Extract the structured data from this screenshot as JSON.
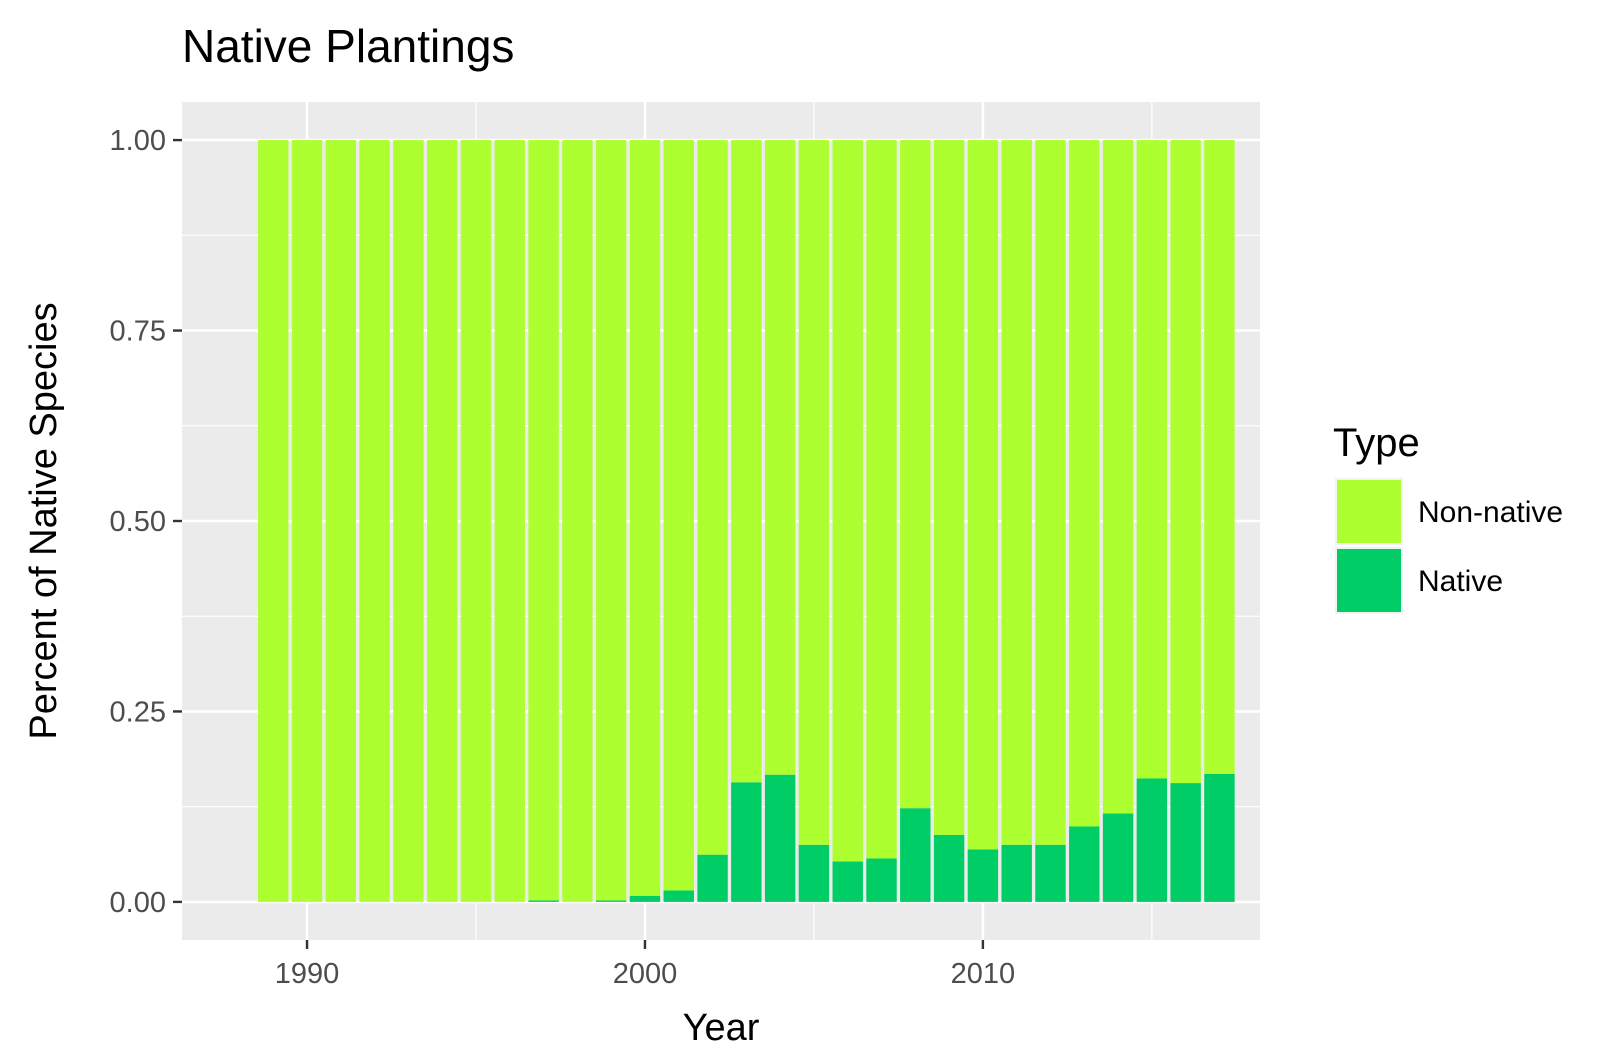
{
  "chart_data": {
    "type": "bar",
    "stacked": true,
    "title": "Native Plantings",
    "xlabel": "Year",
    "ylabel": "Percent of Native Species",
    "x": [
      1989,
      1990,
      1991,
      1992,
      1993,
      1994,
      1995,
      1996,
      1997,
      1998,
      1999,
      2000,
      2001,
      2002,
      2003,
      2004,
      2005,
      2006,
      2007,
      2008,
      2009,
      2010,
      2011,
      2012,
      2013,
      2014,
      2015,
      2016,
      2017
    ],
    "series": [
      {
        "name": "Non-native",
        "color": "#adff2f",
        "values": [
          1,
          1,
          1,
          1,
          1,
          1,
          1,
          1,
          0.998,
          1,
          0.998,
          0.992,
          0.985,
          0.938,
          0.843,
          0.833,
          0.925,
          0.947,
          0.943,
          0.877,
          0.912,
          0.931,
          0.925,
          0.925,
          0.901,
          0.884,
          0.838,
          0.844,
          0.832
        ]
      },
      {
        "name": "Native",
        "color": "#00cd66",
        "values": [
          0,
          0,
          0,
          0,
          0,
          0,
          0,
          0,
          0.002,
          0,
          0.002,
          0.008,
          0.015,
          0.062,
          0.157,
          0.167,
          0.075,
          0.053,
          0.057,
          0.123,
          0.088,
          0.069,
          0.075,
          0.075,
          0.099,
          0.116,
          0.162,
          0.156,
          0.168
        ]
      }
    ],
    "ylim": [
      -0.05,
      1.05
    ],
    "xlim": [
      1986.3,
      2018.2
    ],
    "y_ticks": [
      "0.00",
      "0.25",
      "0.50",
      "0.75",
      "1.00"
    ],
    "x_ticks": [
      "1990",
      "2000",
      "2010"
    ],
    "legend": {
      "title": "Type",
      "position": "right",
      "entries": [
        "Non-native",
        "Native"
      ]
    },
    "grid": true,
    "panel_background": "#ebebeb"
  }
}
